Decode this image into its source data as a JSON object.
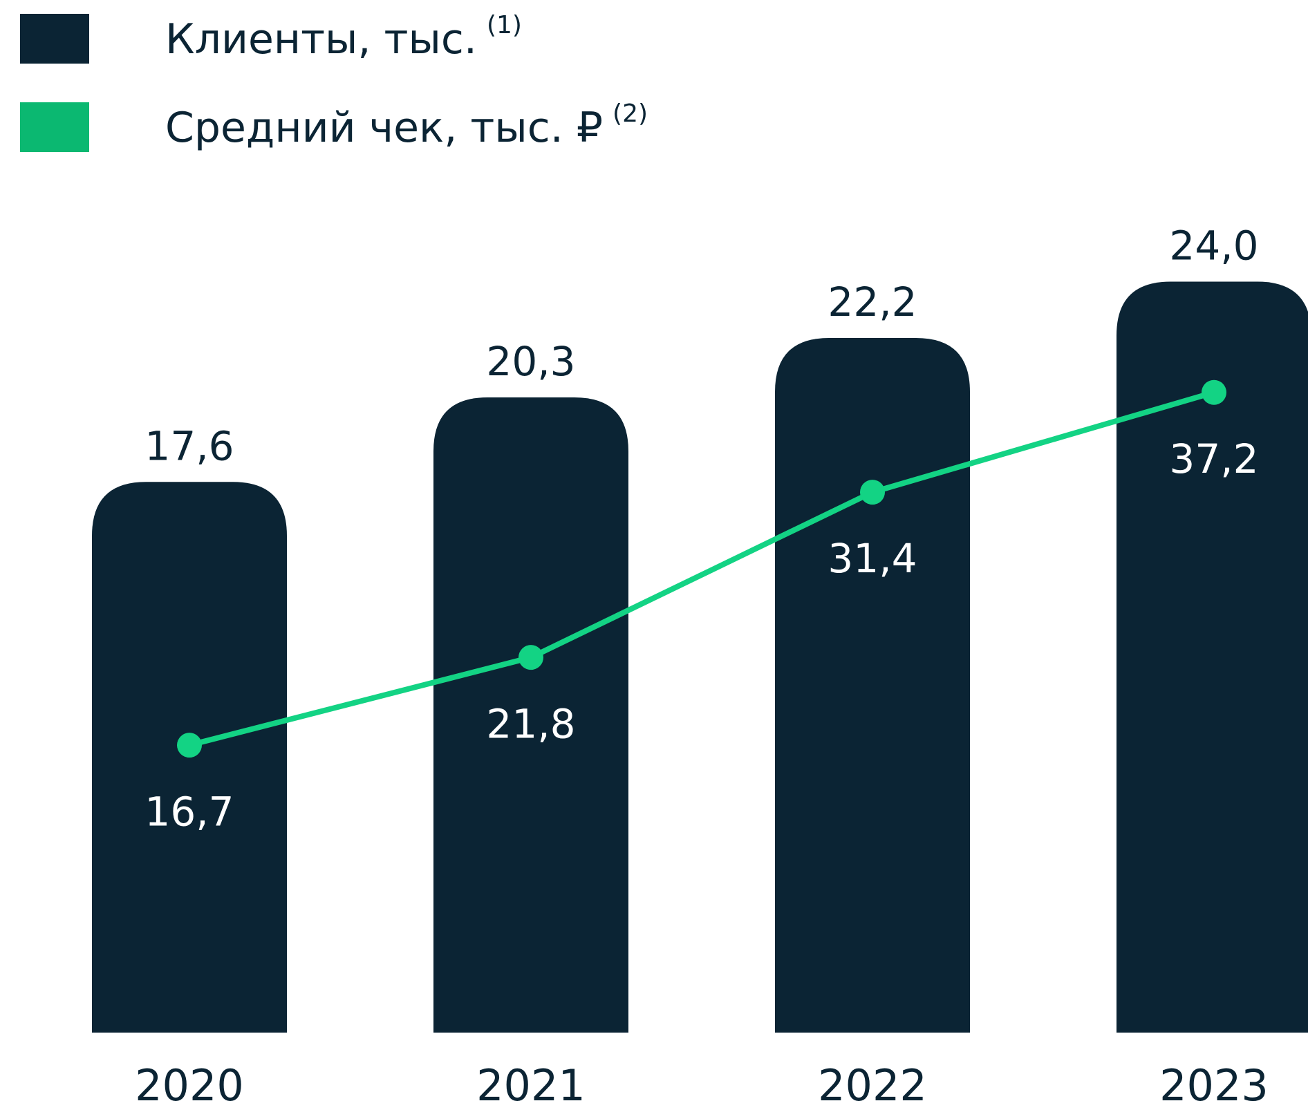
{
  "chart_data": {
    "type": "bar_line",
    "categories": [
      "2020",
      "2021",
      "2022",
      "2023"
    ],
    "series": [
      {
        "name": "Клиенты, тыс.",
        "footnote": "(1)",
        "type": "bar",
        "color": "#0b2434",
        "values": [
          17.6,
          20.3,
          22.2,
          24.0
        ],
        "value_labels": [
          "17,6",
          "20,3",
          "22,2",
          "24,0"
        ]
      },
      {
        "name": "Средний чек, тыс. ₽",
        "footnote": "(2)",
        "type": "line",
        "axis": "y2",
        "color": "#13d384",
        "legend_color": "#0bb871",
        "values": [
          16.7,
          21.8,
          31.4,
          37.2
        ],
        "value_labels": [
          "16,7",
          "21,8",
          "31,4",
          "37,2"
        ]
      }
    ],
    "ylim": [
      0,
      33
    ],
    "y2lim": [
      0,
      60
    ]
  }
}
